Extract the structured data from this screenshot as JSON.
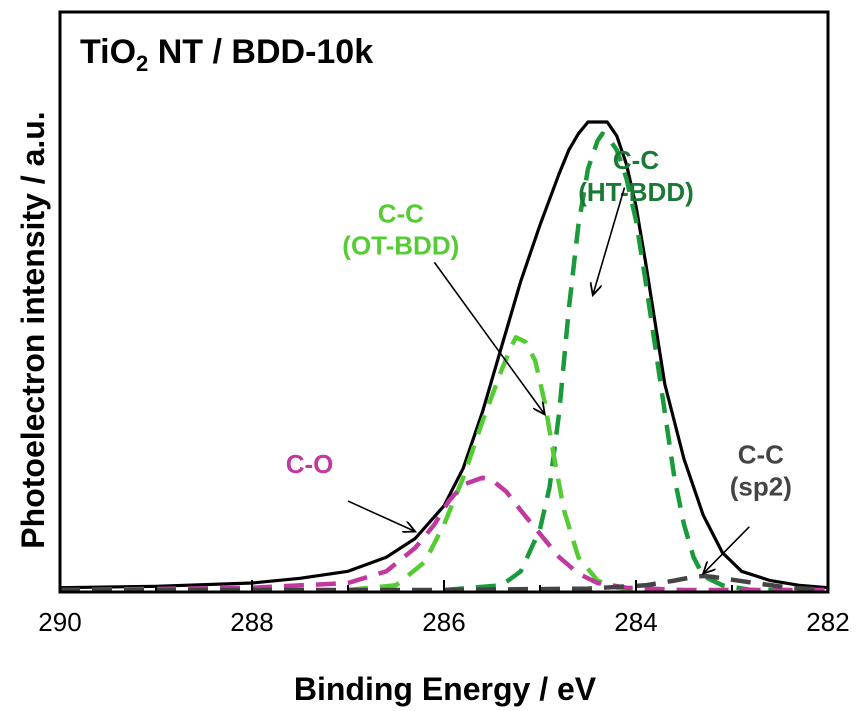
{
  "chart_data": {
    "type": "line",
    "title_main": "TiO",
    "title_sub": "2",
    "title_rest": " NT / BDD-10k",
    "xlabel": "Binding Energy / eV",
    "ylabel": "Photoelectron intensity / a.u.",
    "xlim": [
      290,
      282
    ],
    "x_reversed": true,
    "ylim": [
      0,
      100
    ],
    "y_ticks_shown": false,
    "xticks": [
      290,
      288,
      286,
      284,
      282
    ],
    "xtick_labels": [
      "290",
      "288",
      "286",
      "284",
      "282"
    ],
    "series": [
      {
        "key": "envelope",
        "color": "#000000",
        "style": "solid",
        "points": [
          [
            290,
            0.5
          ],
          [
            289,
            0.8
          ],
          [
            288,
            1.5
          ],
          [
            287.5,
            2.5
          ],
          [
            287,
            4
          ],
          [
            286.6,
            7
          ],
          [
            286.3,
            11
          ],
          [
            286,
            18
          ],
          [
            285.8,
            26
          ],
          [
            285.6,
            38
          ],
          [
            285.4,
            52
          ],
          [
            285.2,
            66
          ],
          [
            285,
            78
          ],
          [
            284.8,
            89
          ],
          [
            284.7,
            94
          ],
          [
            284.6,
            97.5
          ],
          [
            284.5,
            100
          ],
          [
            284.3,
            100
          ],
          [
            284.2,
            97
          ],
          [
            284.1,
            91
          ],
          [
            284,
            82
          ],
          [
            283.9,
            70
          ],
          [
            283.8,
            57
          ],
          [
            283.7,
            44
          ],
          [
            283.5,
            28
          ],
          [
            283.3,
            16
          ],
          [
            283.1,
            8
          ],
          [
            282.9,
            4
          ],
          [
            282.6,
            2
          ],
          [
            282.3,
            1
          ],
          [
            282,
            0.5
          ]
        ]
      },
      {
        "key": "C-C (HT-BDD)",
        "color": "#1a9a3a",
        "style": "dashed",
        "points": [
          [
            286,
            0
          ],
          [
            285.4,
            1
          ],
          [
            285.2,
            4
          ],
          [
            285,
            13
          ],
          [
            284.9,
            22
          ],
          [
            284.8,
            38
          ],
          [
            284.7,
            60
          ],
          [
            284.6,
            78
          ],
          [
            284.5,
            90
          ],
          [
            284.4,
            96
          ],
          [
            284.35,
            97.5
          ],
          [
            284.3,
            97
          ],
          [
            284.2,
            94
          ],
          [
            284.1,
            88
          ],
          [
            284,
            79
          ],
          [
            283.9,
            66
          ],
          [
            283.8,
            52
          ],
          [
            283.7,
            38
          ],
          [
            283.6,
            24
          ],
          [
            283.5,
            14
          ],
          [
            283.4,
            7
          ],
          [
            283.3,
            3
          ],
          [
            283.1,
            1
          ],
          [
            282.8,
            0
          ],
          [
            282,
            0
          ]
        ]
      },
      {
        "key": "C-C (OT-BDD)",
        "color": "#55cc33",
        "style": "dashed",
        "points": [
          [
            287,
            0
          ],
          [
            286.5,
            1
          ],
          [
            286.2,
            6
          ],
          [
            286,
            14
          ],
          [
            285.8,
            24
          ],
          [
            285.6,
            36
          ],
          [
            285.4,
            47
          ],
          [
            285.3,
            52
          ],
          [
            285.25,
            54
          ],
          [
            285.15,
            53
          ],
          [
            285.05,
            49
          ],
          [
            284.95,
            40
          ],
          [
            284.85,
            28
          ],
          [
            284.75,
            17
          ],
          [
            284.6,
            7
          ],
          [
            284.4,
            2
          ],
          [
            284.2,
            0.5
          ],
          [
            284,
            0
          ]
        ]
      },
      {
        "key": "C-O",
        "color": "#c0399e",
        "style": "dashed",
        "points": [
          [
            290,
            0
          ],
          [
            288,
            0.5
          ],
          [
            287,
            1.5
          ],
          [
            286.6,
            4
          ],
          [
            286.3,
            9
          ],
          [
            286.1,
            14
          ],
          [
            285.95,
            19
          ],
          [
            285.8,
            22.5
          ],
          [
            285.6,
            24
          ],
          [
            285.5,
            23.5
          ],
          [
            285.35,
            21
          ],
          [
            285.2,
            17
          ],
          [
            285,
            12
          ],
          [
            284.8,
            7
          ],
          [
            284.6,
            3.5
          ],
          [
            284.4,
            1.5
          ],
          [
            284.1,
            0.5
          ],
          [
            283.5,
            0
          ],
          [
            282,
            0
          ]
        ]
      },
      {
        "key": "C-C (sp2)",
        "color": "#444444",
        "style": "dashed",
        "points": [
          [
            290,
            0
          ],
          [
            286,
            0
          ],
          [
            284.5,
            0.3
          ],
          [
            283.9,
            1
          ],
          [
            283.6,
            2
          ],
          [
            283.4,
            2.8
          ],
          [
            283.3,
            3
          ],
          [
            283.2,
            2.8
          ],
          [
            283,
            2.2
          ],
          [
            282.7,
            1.3
          ],
          [
            282.4,
            0.5
          ],
          [
            282,
            0
          ]
        ]
      }
    ],
    "annotations": [
      {
        "key": "ht",
        "lines": [
          "C-C",
          "(HT-BDD)"
        ],
        "color": "#1a7a35",
        "text_at": [
          284.0,
          90.0
        ],
        "arrow_from": [
          284.12,
          86.0
        ],
        "arrow_to": [
          284.45,
          63.0
        ]
      },
      {
        "key": "ot",
        "lines": [
          "C-C",
          "(OT-BDD)"
        ],
        "color": "#55cc33",
        "text_at": [
          286.45,
          78.5
        ],
        "arrow_from": [
          286.1,
          70.0
        ],
        "arrow_to": [
          284.95,
          37.5
        ]
      },
      {
        "key": "co",
        "lines": [
          "C-O"
        ],
        "color": "#c0399e",
        "text_at": [
          287.4,
          25.0
        ],
        "arrow_from": [
          287.0,
          19.0
        ],
        "arrow_to": [
          286.3,
          12.5
        ]
      },
      {
        "key": "sp2",
        "lines": [
          "C-C",
          "(sp2)"
        ],
        "color": "#444444",
        "text_at": [
          282.7,
          27.0
        ],
        "arrow_from": [
          282.82,
          13.5
        ],
        "arrow_to": [
          283.3,
          3.5
        ]
      }
    ]
  }
}
